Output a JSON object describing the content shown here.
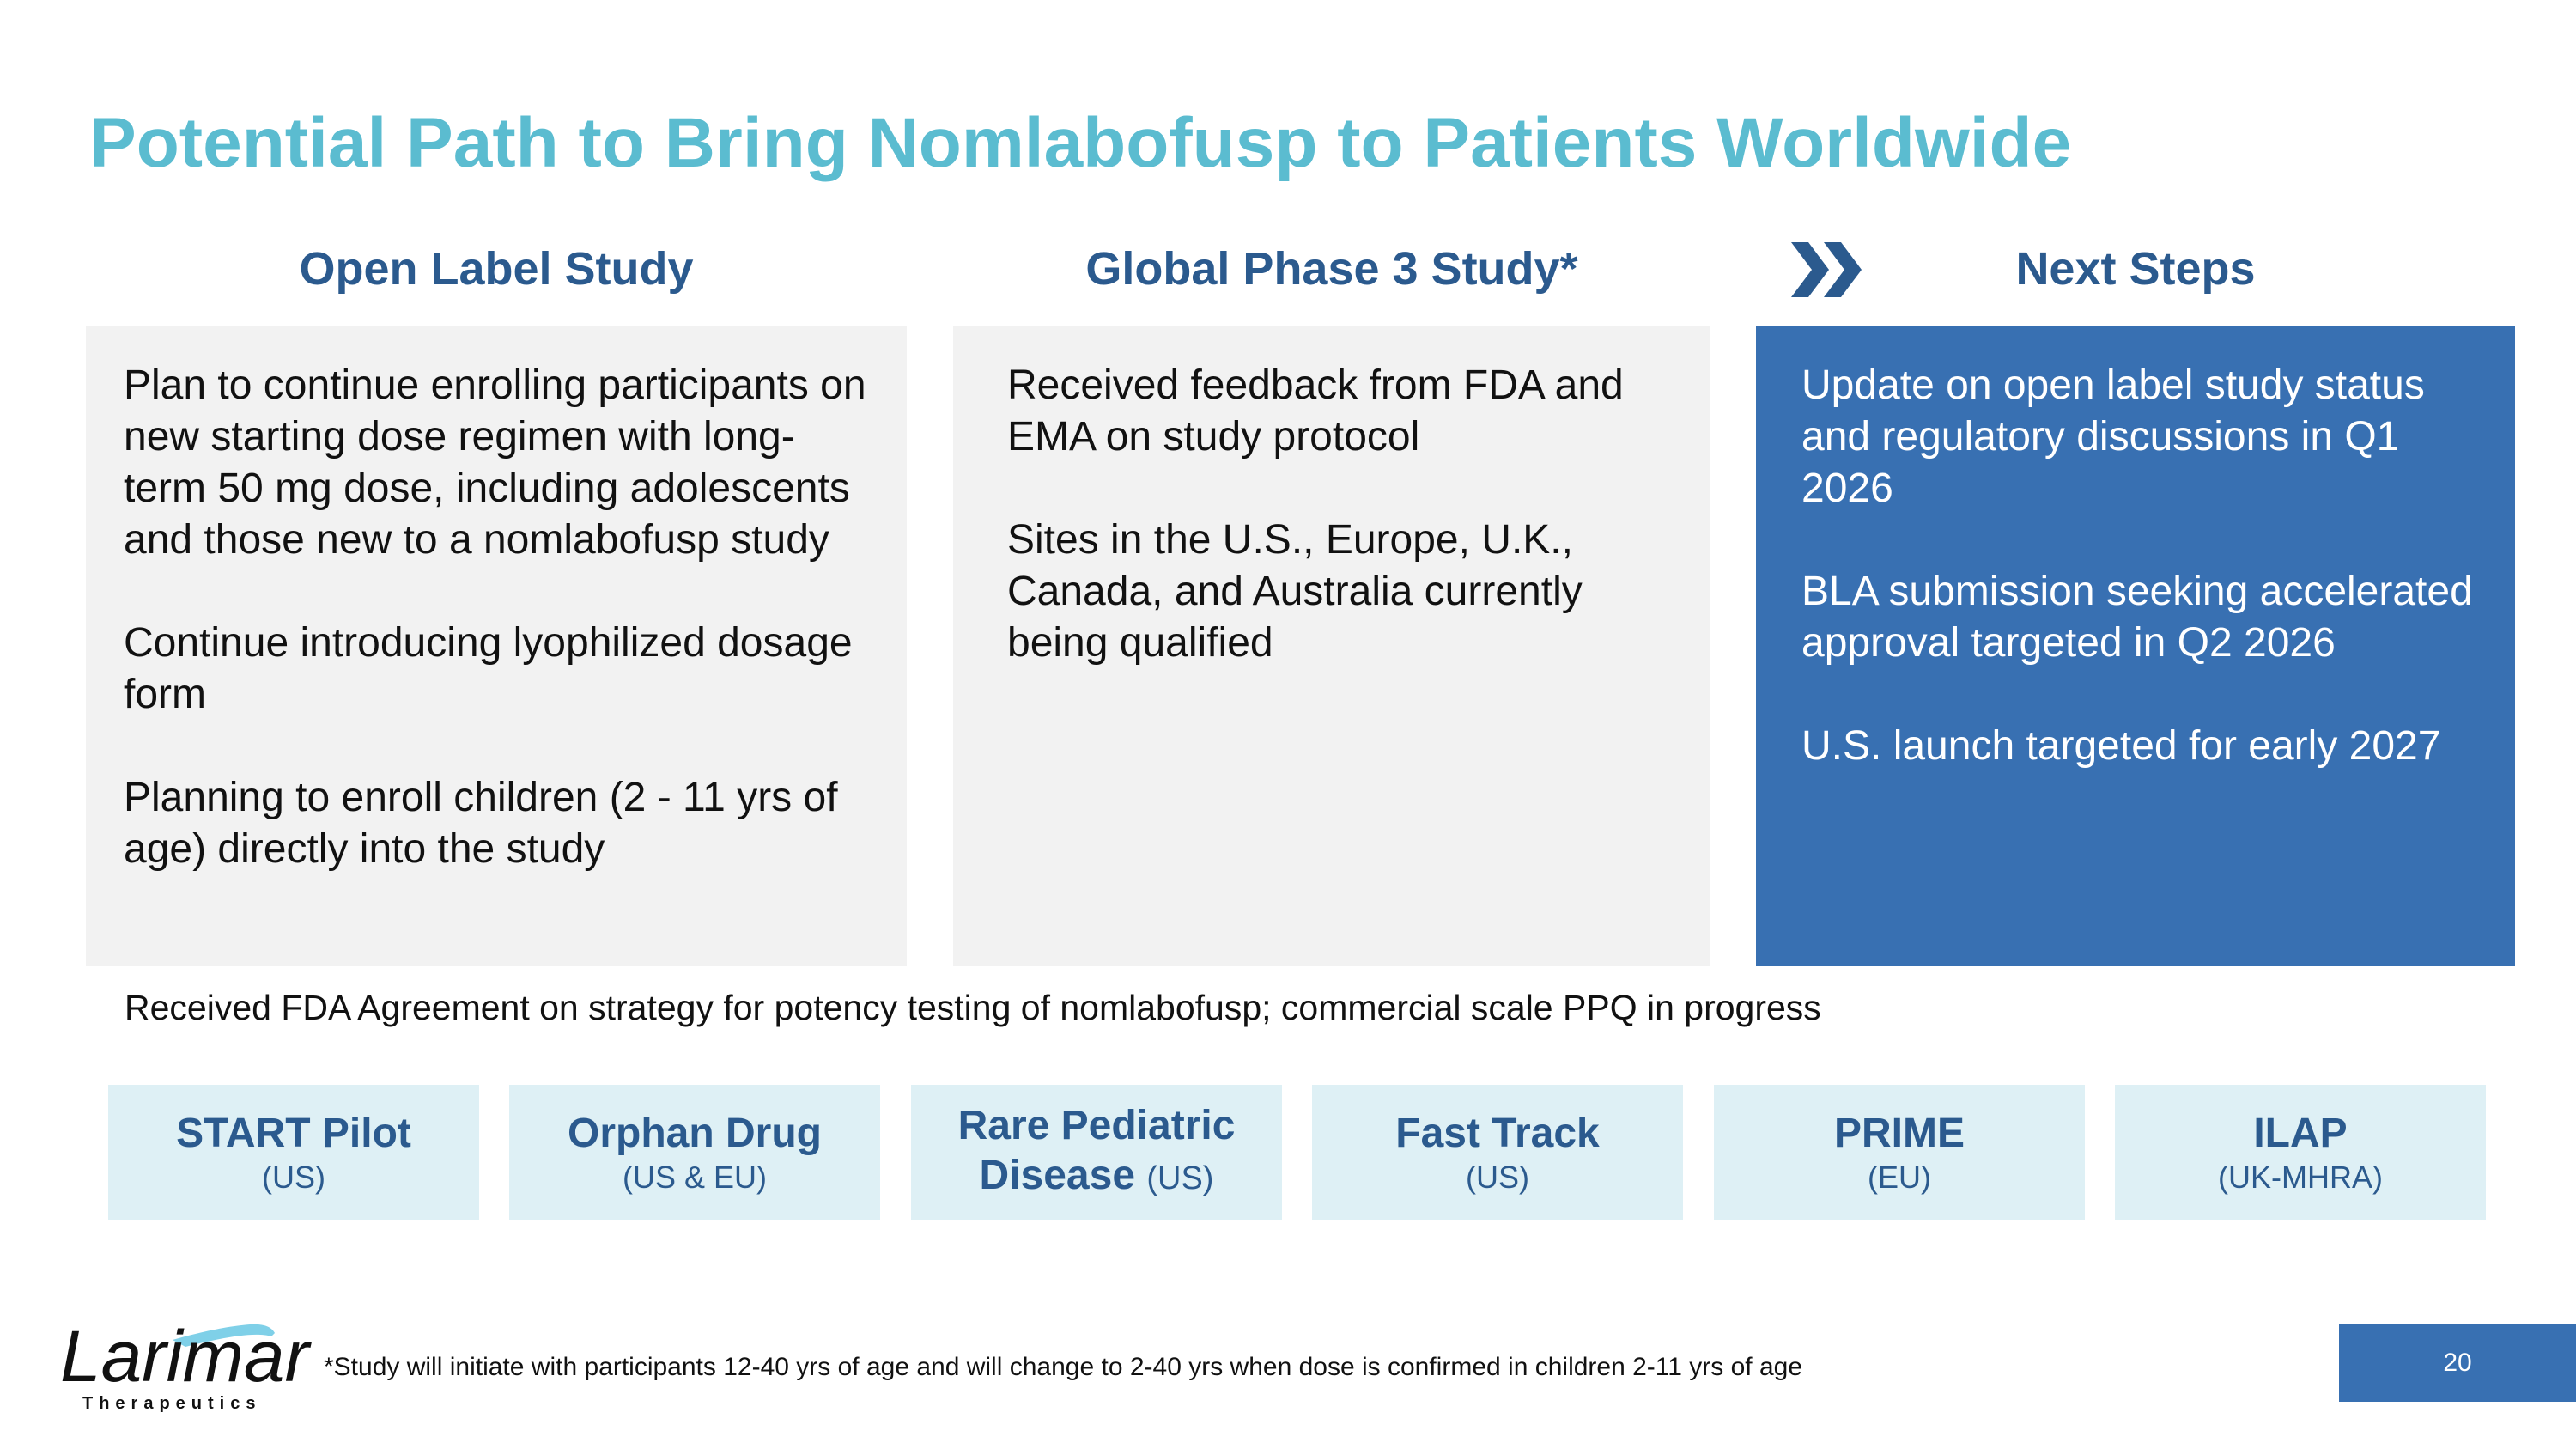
{
  "title": "Potential Path to Bring Nomlabofusp to Patients Worldwide",
  "columns": [
    {
      "heading": "Open Label Study",
      "paragraphs": [
        "Plan to continue enrolling participants on new starting dose regimen with long-term 50 mg dose, including adolescents and those new to a nomlabofusp study",
        "Continue introducing lyophilized dosage form",
        "Planning to enroll children (2 - 11 yrs of age) directly into the study"
      ]
    },
    {
      "heading": "Global Phase 3 Study*",
      "paragraphs": [
        "Received feedback from FDA and EMA on study protocol",
        "Sites in the U.S., Europe, U.K., Canada, and Australia currently being qualified"
      ]
    },
    {
      "heading": "Next Steps",
      "paragraphs": [
        "Update on open label study status and regulatory discussions in Q1 2026",
        "BLA submission seeking accelerated approval targeted in Q2 2026",
        "U.S. launch targeted for early 2027"
      ]
    }
  ],
  "agreement": "Received FDA Agreement on strategy for potency testing of nomlabofusp; commercial scale PPQ in progress",
  "badges": [
    {
      "title": "START Pilot",
      "region": "(US)"
    },
    {
      "title": "Orphan Drug",
      "region": "(US & EU)"
    },
    {
      "title": "Rare Pediatric",
      "title2": "Disease",
      "region": "(US)"
    },
    {
      "title": "Fast Track",
      "region": "(US)"
    },
    {
      "title": "PRIME",
      "region": "(EU)"
    },
    {
      "title": "ILAP",
      "region": "(UK-MHRA)"
    }
  ],
  "footnote": "*Study will initiate with participants 12-40 yrs of age and will change to 2-40 yrs when dose is confirmed in children 2-11 yrs of age",
  "page_number": "20",
  "logo": {
    "name": "Larimar",
    "tagline": "Therapeutics"
  },
  "colors": {
    "title": "#5bbcd0",
    "heading": "#2b5a8e",
    "accent": "#3870b2",
    "badge": "#def0f5"
  }
}
